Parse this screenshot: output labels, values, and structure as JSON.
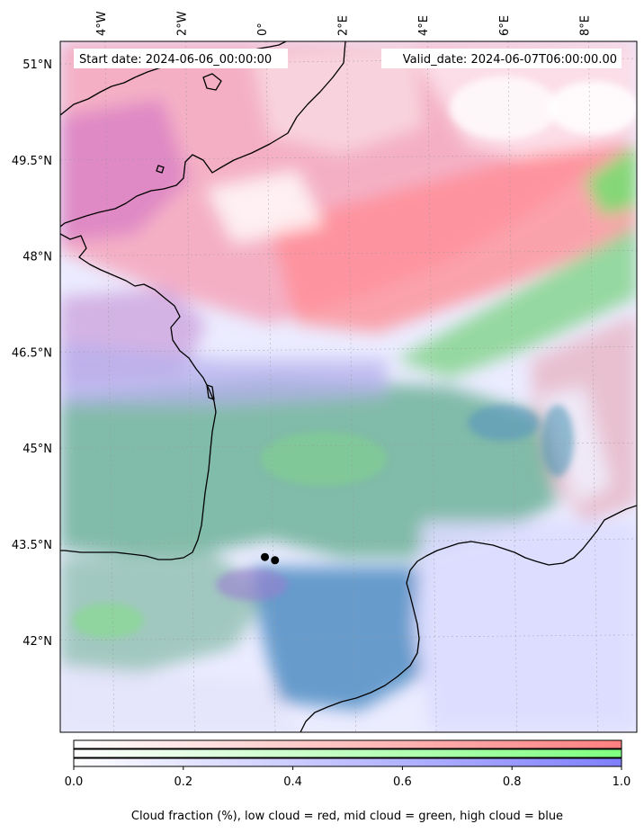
{
  "map": {
    "start_label": "Start date: 2024-06-06_00:00:00",
    "valid_label": "Valid_date: 2024-06-07T06:00:00.00",
    "lon_ticks": [
      {
        "value": -4,
        "label": "4°W"
      },
      {
        "value": -2,
        "label": "2°W"
      },
      {
        "value": 0,
        "label": "0°"
      },
      {
        "value": 2,
        "label": "2°E"
      },
      {
        "value": 4,
        "label": "4°E"
      },
      {
        "value": 6,
        "label": "6°E"
      },
      {
        "value": 8,
        "label": "8°E"
      }
    ],
    "lat_ticks": [
      {
        "value": 51,
        "label": "51°N"
      },
      {
        "value": 49.5,
        "label": "49.5°N"
      },
      {
        "value": 48,
        "label": "48°N"
      },
      {
        "value": 46.5,
        "label": "46.5°N"
      },
      {
        "value": 45,
        "label": "45°N"
      },
      {
        "value": 43.5,
        "label": "43.5°N"
      },
      {
        "value": 42,
        "label": "42°N"
      }
    ],
    "markers": [
      {
        "lon": -0.1,
        "lat": 43.3
      },
      {
        "lon": 0.15,
        "lat": 43.25
      }
    ],
    "layer_colors": {
      "low_cloud": "#ff7f7f",
      "mid_cloud": "#7fff7f",
      "high_cloud": "#7f7fff",
      "marker": "#000000",
      "coastline": "#000000"
    }
  },
  "colorbar": {
    "ticks": [
      {
        "value": 0.0,
        "label": "0.0"
      },
      {
        "value": 0.2,
        "label": "0.2"
      },
      {
        "value": 0.4,
        "label": "0.4"
      },
      {
        "value": 0.6,
        "label": "0.6"
      },
      {
        "value": 0.8,
        "label": "0.8"
      },
      {
        "value": 1.0,
        "label": "1.0"
      }
    ],
    "caption": "Cloud fraction (%), low cloud = red, mid cloud = green, high cloud = blue"
  }
}
